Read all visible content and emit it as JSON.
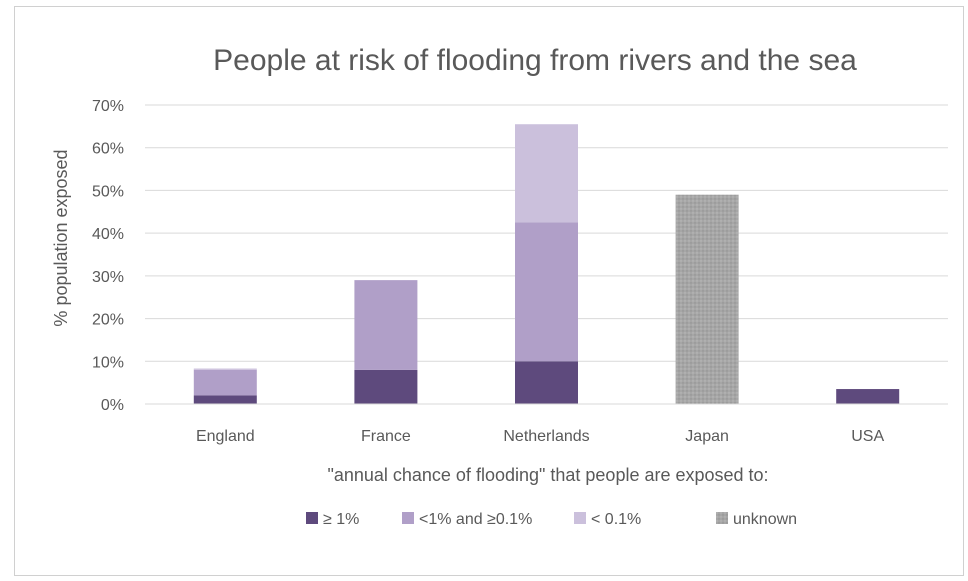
{
  "chart_data": {
    "type": "bar",
    "stacked": true,
    "title": "People at risk of flooding from rivers and the sea",
    "xlabel": "\"annual chance of flooding\" that people are exposed to:",
    "ylabel": "% population exposed",
    "ylim": [
      0,
      70
    ],
    "yticks": [
      "0%",
      "10%",
      "20%",
      "30%",
      "40%",
      "50%",
      "60%",
      "70%"
    ],
    "grid": true,
    "legend_position": "bottom",
    "categories": [
      "England",
      "France",
      "Netherlands",
      "Japan",
      "USA"
    ],
    "series": [
      {
        "name": "≥ 1%",
        "color": "#5e4a7d",
        "values": [
          2,
          8,
          10,
          0,
          3.5
        ]
      },
      {
        "name": "<1% and ≥0.1%",
        "color": "#b09fc8",
        "values": [
          6,
          21,
          32.5,
          0,
          0
        ]
      },
      {
        "name": "< 0.1%",
        "color": "#cbc0dc",
        "values": [
          0.3,
          0,
          23,
          0,
          0
        ]
      },
      {
        "name": "unknown",
        "color": "#a6a6a6",
        "values": [
          0,
          0,
          0,
          49,
          0
        ]
      }
    ]
  }
}
